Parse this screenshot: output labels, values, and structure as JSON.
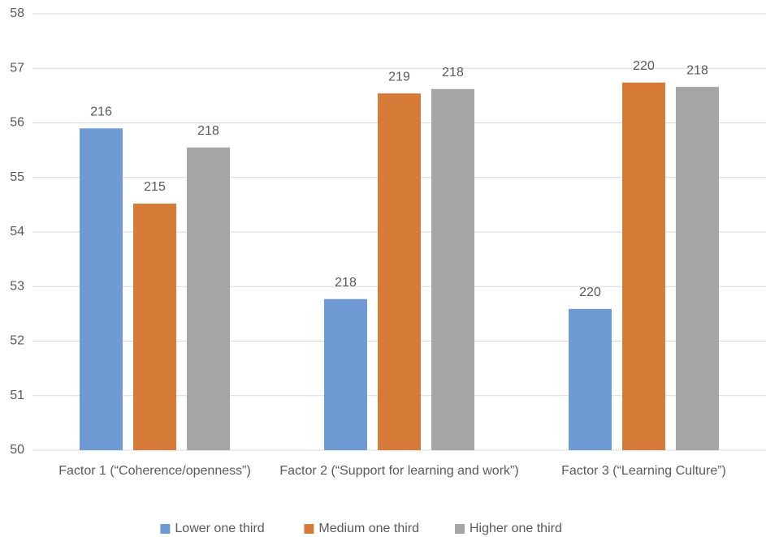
{
  "chart_data": {
    "type": "bar",
    "categories": [
      "Factor 1 (“Coherence/openness”)",
      "Factor 2 (“Support for learning and work”)",
      "Factor 3 (“Learning Culture”)"
    ],
    "series": [
      {
        "name": "Lower one third",
        "color": "#6f9bd4",
        "values": [
          55.9,
          52.77,
          52.59
        ],
        "counts": [
          216,
          218,
          220
        ]
      },
      {
        "name": "Medium one third",
        "color": "#d77b38",
        "values": [
          54.52,
          56.54,
          56.74
        ],
        "counts": [
          215,
          219,
          220
        ]
      },
      {
        "name": "Higher one third",
        "color": "#a5a5a5",
        "values": [
          55.55,
          56.62,
          56.66
        ],
        "counts": [
          218,
          218,
          218
        ]
      }
    ],
    "ylim": [
      50,
      58
    ],
    "yticks": [
      50,
      51,
      52,
      53,
      54,
      55,
      56,
      57,
      58
    ],
    "grid": true,
    "legend": "bottom"
  }
}
